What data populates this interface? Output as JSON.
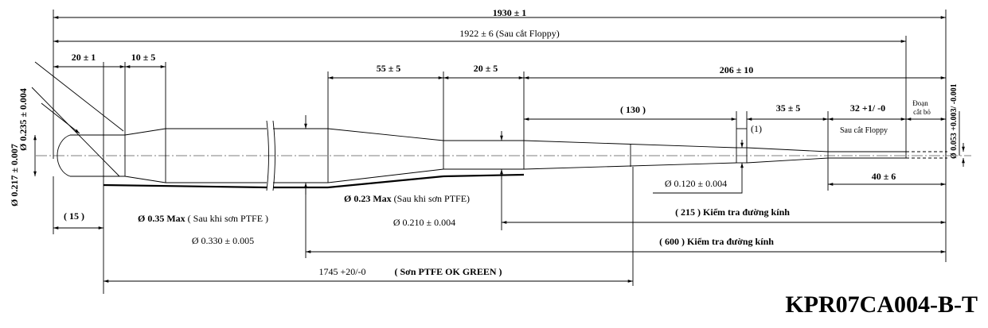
{
  "dims": {
    "total_length": "1930 ± 1",
    "length_after_cut": "1922 ± 6 (Sau cắt Floppy)",
    "tip_length": "20 ± 1",
    "tip_taper": "10 ± 5",
    "taper_a": "55 ± 5",
    "seg_b": "20 ± 5",
    "seg_c": "206 ± 10",
    "seg_130": "( 130 )",
    "seg_35": "35 ± 5",
    "seg_32": "32 +1/ -0",
    "seg_1": "(1)",
    "scrap_label_1": "Đoạn",
    "scrap_label_2": "cắt bỏ",
    "floppy_cut": "Sau cắt Floppy",
    "end_dia": "Ø 0.053 +0.003/ -0.001",
    "left_dia_1": "Ø 0.235 ± 0.004",
    "left_dia_2": "Ø 0.217 ± 0.007",
    "dim_15": "( 15 )",
    "d035_bold": "Ø 0.35 Max",
    "d035_rest": " ( Sau khi sơn PTFE )",
    "d330": "Ø 0.330 ± 0.005",
    "d023_bold": "Ø 0.23 Max",
    "d023_rest": " (Sau khi sơn PTFE)",
    "d210": "Ø 0.210 ± 0.004",
    "d120": "Ø 0.120 ± 0.004",
    "dim_40": "40 ± 6",
    "check_215": "( 215 )  Kiểm tra đường kính",
    "check_600": "( 600 )  Kiểm tra đường kính",
    "ptfe_len": "1745 +20/-0",
    "ptfe_note": "( Sơn PTFE OK GREEN )"
  },
  "part_number": "KPR07CA004-B-T"
}
